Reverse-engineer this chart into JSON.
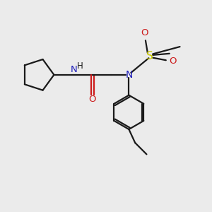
{
  "bg_color": "#ebebeb",
  "bond_color": "#1a1a1a",
  "nitrogen_color": "#2020bb",
  "oxygen_color": "#cc1a1a",
  "sulfur_color": "#cccc00",
  "line_width": 1.6,
  "figsize": [
    3.0,
    3.0
  ],
  "dpi": 100,
  "xlim": [
    0,
    10
  ],
  "ylim": [
    0,
    10
  ]
}
